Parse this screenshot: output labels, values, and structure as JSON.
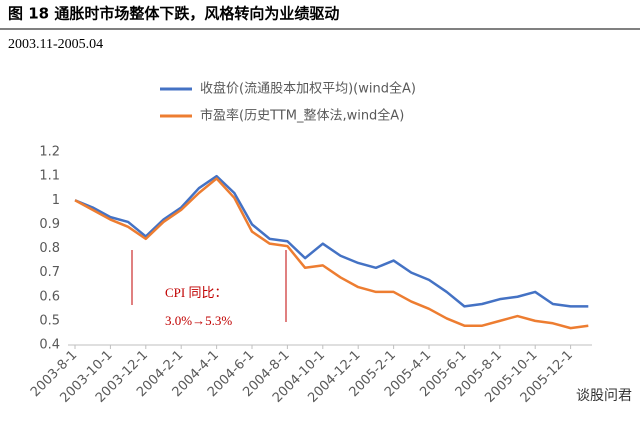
{
  "header": {
    "title": "图 18  通胀时市场整体下跌，风格转向为业绩驱动",
    "subtitle": "2003.11-2005.04"
  },
  "chart_data": {
    "type": "line",
    "categories": [
      "2003-8-1",
      null,
      "2003-10-1",
      null,
      "2003-12-1",
      null,
      "2004-2-1",
      null,
      "2004-4-1",
      null,
      "2004-6-1",
      null,
      "2004-8-1",
      null,
      "2004-10-1",
      null,
      "2004-12-1",
      null,
      "2005-2-1",
      null,
      "2005-4-1",
      null,
      "2005-6-1",
      null,
      "2005-8-1",
      null,
      "2005-10-1",
      null,
      "2005-12-1",
      null
    ],
    "series": [
      {
        "name": "收盘价(流通股本加权平均)(wind全A)",
        "color": "#4472c4",
        "values": [
          1.0,
          0.97,
          0.93,
          0.91,
          0.85,
          0.92,
          0.97,
          1.05,
          1.1,
          1.03,
          0.9,
          0.84,
          0.83,
          0.76,
          0.82,
          0.77,
          0.74,
          0.72,
          0.75,
          0.7,
          0.67,
          0.62,
          0.56,
          0.57,
          0.59,
          0.6,
          0.62,
          0.57,
          0.56,
          0.56
        ]
      },
      {
        "name": "市盈率(历史TTM_整体法,wind全A)",
        "color": "#ed7d31",
        "values": [
          1.0,
          0.96,
          0.92,
          0.89,
          0.84,
          0.91,
          0.96,
          1.03,
          1.09,
          1.01,
          0.87,
          0.82,
          0.81,
          0.72,
          0.73,
          0.68,
          0.64,
          0.62,
          0.62,
          0.58,
          0.55,
          0.51,
          0.48,
          0.48,
          0.5,
          0.52,
          0.5,
          0.49,
          0.47,
          0.48
        ]
      }
    ],
    "ylim": [
      0.4,
      1.2
    ],
    "yticks": [
      0.4,
      0.5,
      0.6,
      0.7,
      0.8,
      0.9,
      1,
      1.1,
      1.2
    ],
    "grid": false,
    "annotations": [
      "CPI 同比：",
      "3.0%→5.3%"
    ]
  },
  "watermark": "谈股问君"
}
